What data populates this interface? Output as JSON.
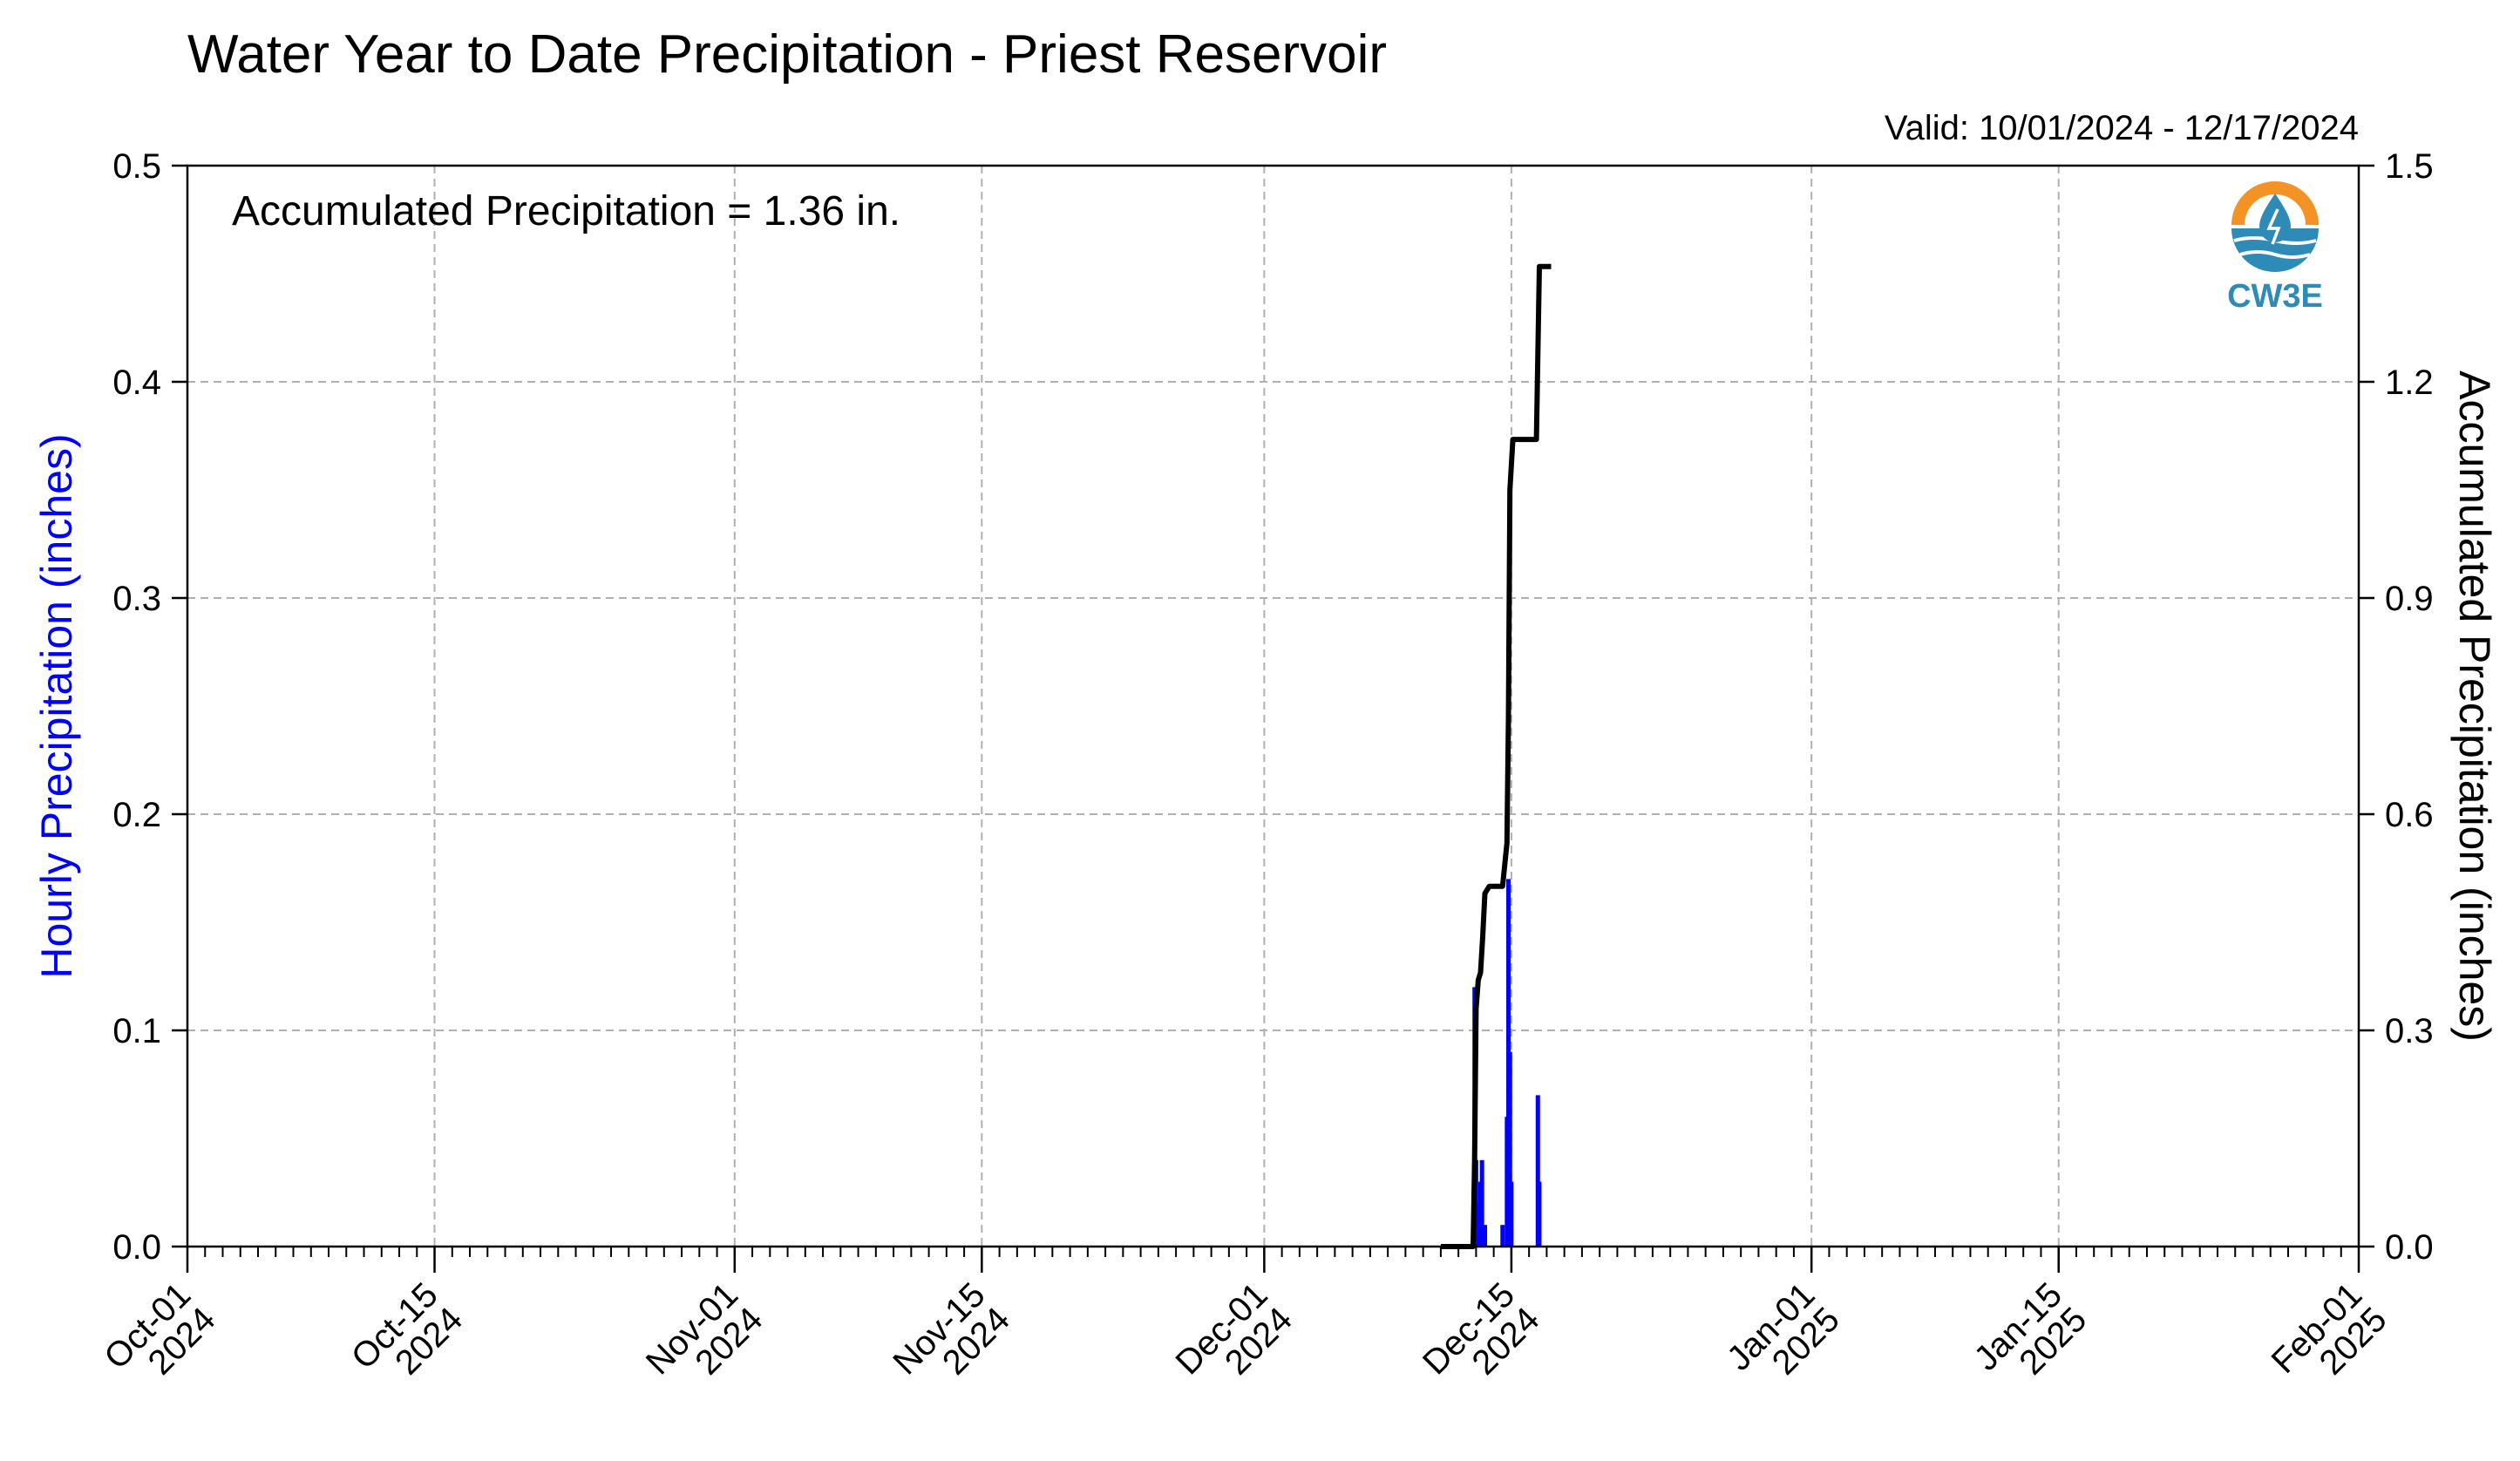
{
  "title": "Water Year to Date Precipitation - Priest Reservoir",
  "valid_text": "Valid: 10/01/2024 - 12/17/2024",
  "annotation": "Accumulated Precipitation = 1.36 in.",
  "logo": {
    "text": "CW3E",
    "icon": "water-drop-sun-logo-icon",
    "orange": "#F39325",
    "blue": "#2E8BB8"
  },
  "colors": {
    "hourly": "#0000FF",
    "accumulated": "#000000",
    "grid": "#B0B0B0"
  },
  "chart_data": {
    "type": "bar",
    "title": "Water Year to Date Precipitation - Priest Reservoir",
    "xlabel": "",
    "ylabel": "Hourly Precipitation (inches)",
    "y2label": "Accumulated Precipitation (inches)",
    "xlim": [
      "2024-10-01",
      "2025-02-01"
    ],
    "ylim": [
      0,
      0.5
    ],
    "y2lim": [
      0,
      1.5
    ],
    "yticks": [
      "0.0",
      "0.1",
      "0.2",
      "0.3",
      "0.4",
      "0.5"
    ],
    "y2ticks": [
      "0.0",
      "0.3",
      "0.6",
      "0.9",
      "1.2",
      "1.5"
    ],
    "x_ticks": [
      {
        "date": "2024-10-01",
        "label": [
          "Oct-01",
          "2024"
        ]
      },
      {
        "date": "2024-10-15",
        "label": [
          "Oct-15",
          "2024"
        ]
      },
      {
        "date": "2024-11-01",
        "label": [
          "Nov-01",
          "2024"
        ]
      },
      {
        "date": "2024-11-15",
        "label": [
          "Nov-15",
          "2024"
        ]
      },
      {
        "date": "2024-12-01",
        "label": [
          "Dec-01",
          "2024"
        ]
      },
      {
        "date": "2024-12-15",
        "label": [
          "Dec-15",
          "2024"
        ]
      },
      {
        "date": "2025-01-01",
        "label": [
          "Jan-01",
          "2025"
        ]
      },
      {
        "date": "2025-01-15",
        "label": [
          "Jan-15",
          "2025"
        ]
      },
      {
        "date": "2025-02-01",
        "label": [
          "Feb-01",
          "2025"
        ]
      }
    ],
    "grid": true,
    "series": [
      {
        "name": "Hourly Precipitation (inches)",
        "type": "bar",
        "axis": "left",
        "points": [
          {
            "x": "2024-12-12T22:00",
            "y": 0.12
          },
          {
            "x": "2024-12-13T00:00",
            "y": 0.04
          },
          {
            "x": "2024-12-13T02:00",
            "y": 0.02
          },
          {
            "x": "2024-12-13T04:00",
            "y": 0.02
          },
          {
            "x": "2024-12-13T06:00",
            "y": 0.03
          },
          {
            "x": "2024-12-13T08:00",
            "y": 0.04
          },
          {
            "x": "2024-12-13T12:00",
            "y": 0.01
          },
          {
            "x": "2024-12-14T12:00",
            "y": 0.01
          },
          {
            "x": "2024-12-14T18:00",
            "y": 0.06
          },
          {
            "x": "2024-12-14T20:00",
            "y": 0.17
          },
          {
            "x": "2024-12-14T22:00",
            "y": 0.09
          },
          {
            "x": "2024-12-15T00:00",
            "y": 0.03
          },
          {
            "x": "2024-12-16T12:00",
            "y": 0.07
          },
          {
            "x": "2024-12-16T14:00",
            "y": 0.03
          }
        ]
      },
      {
        "name": "Accumulated Precipitation (inches)",
        "type": "line",
        "axis": "right",
        "points": [
          {
            "x": "2024-12-11T00:00",
            "y": 0.0
          },
          {
            "x": "2024-12-12T20:00",
            "y": 0.0
          },
          {
            "x": "2024-12-12T22:00",
            "y": 0.12
          },
          {
            "x": "2024-12-13T00:00",
            "y": 0.33
          },
          {
            "x": "2024-12-13T03:00",
            "y": 0.37
          },
          {
            "x": "2024-12-13T06:00",
            "y": 0.38
          },
          {
            "x": "2024-12-13T09:00",
            "y": 0.43
          },
          {
            "x": "2024-12-13T12:00",
            "y": 0.49
          },
          {
            "x": "2024-12-13T18:00",
            "y": 0.5
          },
          {
            "x": "2024-12-14T12:00",
            "y": 0.5
          },
          {
            "x": "2024-12-14T18:00",
            "y": 0.56
          },
          {
            "x": "2024-12-14T20:00",
            "y": 0.73
          },
          {
            "x": "2024-12-14T22:00",
            "y": 1.05
          },
          {
            "x": "2024-12-15T02:00",
            "y": 1.12
          },
          {
            "x": "2024-12-16T10:00",
            "y": 1.12
          },
          {
            "x": "2024-12-16T14:00",
            "y": 1.36
          },
          {
            "x": "2024-12-17T06:00",
            "y": 1.36
          }
        ]
      }
    ]
  }
}
